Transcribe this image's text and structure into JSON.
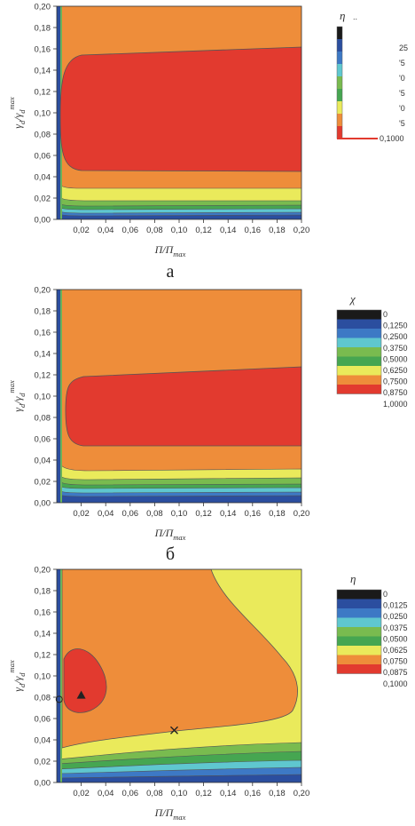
{
  "chart_data": [
    {
      "type": "heatmap",
      "panel_label": "а",
      "xlabel": {
        "main": "П/П",
        "sub": "max"
      },
      "ylabel": {
        "main": "γ",
        "sub": "d",
        "mid": "/γ",
        "sub2": "d",
        "sup": "max"
      },
      "xlim": [
        0,
        0.2
      ],
      "ylim": [
        0,
        0.2
      ],
      "xticks": [
        "0,02",
        "0,04",
        "0,06",
        "0,08",
        "0,10",
        "0,12",
        "0,14",
        "0,16",
        "0,18",
        "0,20"
      ],
      "yticks": [
        "0,00",
        "0,02",
        "0,04",
        "0,06",
        "0,08",
        "0,10",
        "0,12",
        "0,14",
        "0,16",
        "0,18",
        "0,20"
      ],
      "legend": {
        "title": "η",
        "title_suffix": "..",
        "labels": [
          "25",
          "'5",
          "'0",
          "'5",
          "'0",
          "'5",
          "0,1000"
        ],
        "cropped": true
      },
      "background_level": "0,8750-1,0000 band (orange)",
      "regions": [
        {
          "level": "max (red)",
          "x_range": [
            0.005,
            0.2
          ],
          "y_range": [
            0.043,
            0.162
          ]
        }
      ]
    },
    {
      "type": "heatmap",
      "panel_label": "б",
      "xlabel": {
        "main": "П/П",
        "sub": "max"
      },
      "ylabel": {
        "main": "γ",
        "sub": "d",
        "mid": "/γ",
        "sub2": "d",
        "sup": "max"
      },
      "xlim": [
        0,
        0.2
      ],
      "ylim": [
        0,
        0.2
      ],
      "xticks": [
        "0,02",
        "0,04",
        "0,06",
        "0,08",
        "0,10",
        "0,12",
        "0,14",
        "0,16",
        "0,18",
        "0,20"
      ],
      "yticks": [
        "0,00",
        "0,02",
        "0,04",
        "0,06",
        "0,08",
        "0,10",
        "0,12",
        "0,14",
        "0,16",
        "0,18",
        "0,20"
      ],
      "legend": {
        "title": "χ",
        "labels": [
          "0",
          "0,1250",
          "0,2500",
          "0,3750",
          "0,5000",
          "0,6250",
          "0,7500",
          "0,8750",
          "1,0000"
        ]
      },
      "regions": [
        {
          "level": "0,8750-1,0000 (red)",
          "x_range": [
            0.005,
            0.2
          ],
          "y_range": [
            0.053,
            0.127
          ]
        }
      ]
    },
    {
      "type": "heatmap",
      "panel_label": "",
      "xlabel": {
        "main": "П/П",
        "sub": "max"
      },
      "ylabel": {
        "main": "γ",
        "sub": "d",
        "mid": "/γ",
        "sub2": "d",
        "sup": "max"
      },
      "xlim": [
        0,
        0.2
      ],
      "ylim": [
        0,
        0.2
      ],
      "xticks": [
        "0,02",
        "0,04",
        "0,06",
        "0,08",
        "0,10",
        "0,12",
        "0,14",
        "0,16",
        "0,18",
        "0,20"
      ],
      "yticks": [
        "0,00",
        "0,02",
        "0,04",
        "0,06",
        "0,08",
        "0,10",
        "0,12",
        "0,14",
        "0,16",
        "0,18",
        "0,20"
      ],
      "legend": {
        "title": "η",
        "labels": [
          "0",
          "0,0125",
          "0,0250",
          "0,0375",
          "0,0500",
          "0,0625",
          "0,0750",
          "0,0875",
          "0,1000"
        ]
      },
      "markers": [
        {
          "symbol": "triangle",
          "x": 0.02,
          "y": 0.082
        },
        {
          "symbol": "x",
          "x": 0.096,
          "y": 0.049
        },
        {
          "symbol": "circle",
          "x": 0.002,
          "y": 0.078
        }
      ]
    }
  ],
  "caption_between": "б"
}
